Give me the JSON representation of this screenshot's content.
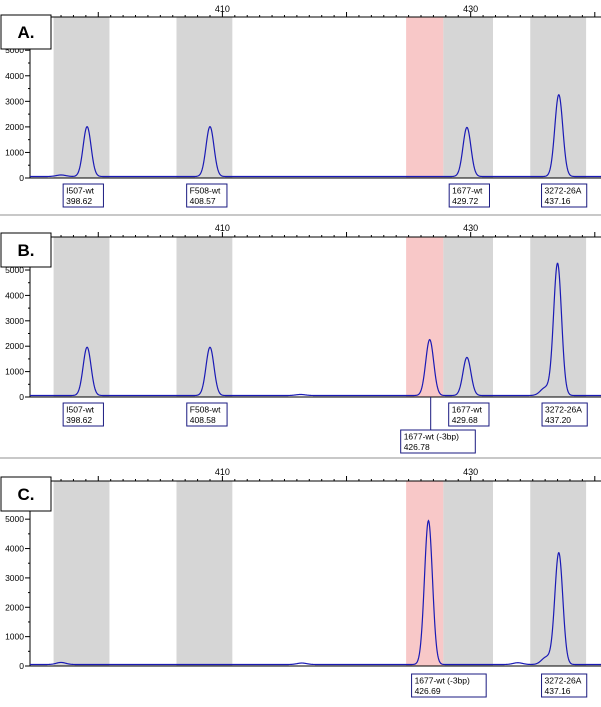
{
  "colors": {
    "bin_gray": "#d6d6d6",
    "bin_pink": "#f8c8c8",
    "trace": "#1a1ab5",
    "annotation_border": "#1a1a80",
    "separator": "#c8c8c8"
  },
  "chart_data": [
    {
      "type": "line",
      "panel_label": "A.",
      "xlim": [
        394.5,
        440.5
      ],
      "x_ticks": [
        410,
        430
      ],
      "ylim": [
        0,
        6300
      ],
      "y_ticks": [
        0,
        1000,
        2000,
        3000,
        4000,
        5000,
        6000
      ],
      "bins": [
        {
          "x0": 396.4,
          "x1": 400.9,
          "color": "gray"
        },
        {
          "x0": 406.3,
          "x1": 410.8,
          "color": "gray"
        },
        {
          "x0": 424.8,
          "x1": 427.8,
          "color": "pink"
        },
        {
          "x0": 427.8,
          "x1": 431.8,
          "color": "gray"
        },
        {
          "x0": 434.8,
          "x1": 439.3,
          "color": "gray"
        }
      ],
      "peaks": [
        {
          "x": 399.1,
          "height": 1950
        },
        {
          "x": 409.0,
          "height": 1950
        },
        {
          "x": 429.7,
          "height": 1920
        },
        {
          "x": 437.1,
          "height": 3200
        },
        {
          "x": 397.0,
          "height": 60
        }
      ],
      "annotations": [
        {
          "x": 398.62,
          "row": 0,
          "line1": "I507-wt",
          "line2": "398.62"
        },
        {
          "x": 408.57,
          "row": 0,
          "line1": "F508-wt",
          "line2": "408.57"
        },
        {
          "x": 429.72,
          "row": 0,
          "line1": "1677-wt",
          "line2": "429.72"
        },
        {
          "x": 437.16,
          "row": 0,
          "line1": "3272-26A",
          "line2": "437.16"
        }
      ]
    },
    {
      "type": "line",
      "panel_label": "B.",
      "xlim": [
        394.5,
        440.5
      ],
      "x_ticks": [
        410,
        430
      ],
      "ylim": [
        0,
        6300
      ],
      "y_ticks": [
        0,
        1000,
        2000,
        3000,
        4000,
        5000
      ],
      "bins": [
        {
          "x0": 396.4,
          "x1": 400.9,
          "color": "gray"
        },
        {
          "x0": 406.3,
          "x1": 410.8,
          "color": "gray"
        },
        {
          "x0": 424.8,
          "x1": 427.8,
          "color": "pink"
        },
        {
          "x0": 427.8,
          "x1": 431.8,
          "color": "gray"
        },
        {
          "x0": 434.8,
          "x1": 439.3,
          "color": "gray"
        }
      ],
      "peaks": [
        {
          "x": 399.1,
          "height": 1900
        },
        {
          "x": 409.0,
          "height": 1900
        },
        {
          "x": 426.7,
          "height": 2200
        },
        {
          "x": 429.7,
          "height": 1500
        },
        {
          "x": 437.0,
          "height": 5200
        },
        {
          "x": 436.0,
          "height": 300
        },
        {
          "x": 416.3,
          "height": 40
        }
      ],
      "annotations": [
        {
          "x": 398.62,
          "row": 0,
          "line1": "I507-wt",
          "line2": "398.62"
        },
        {
          "x": 408.58,
          "row": 0,
          "line1": "F508-wt",
          "line2": "408.58"
        },
        {
          "x": 429.68,
          "row": 0,
          "line1": "1677-wt",
          "line2": "429.68"
        },
        {
          "x": 437.2,
          "row": 0,
          "line1": "3272-26A",
          "line2": "437.20"
        },
        {
          "x": 426.78,
          "row": 1,
          "line1": "1677-wt (-3bp)",
          "line2": "426.78"
        }
      ]
    },
    {
      "type": "line",
      "panel_label": "C.",
      "xlim": [
        394.5,
        440.5
      ],
      "x_ticks": [
        410,
        430
      ],
      "ylim": [
        0,
        6300
      ],
      "y_ticks": [
        0,
        1000,
        2000,
        3000,
        4000,
        5000,
        6000
      ],
      "bins": [
        {
          "x0": 396.4,
          "x1": 400.9,
          "color": "gray"
        },
        {
          "x0": 406.3,
          "x1": 410.8,
          "color": "gray"
        },
        {
          "x0": 424.8,
          "x1": 427.8,
          "color": "pink"
        },
        {
          "x0": 427.8,
          "x1": 431.8,
          "color": "gray"
        },
        {
          "x0": 434.8,
          "x1": 439.3,
          "color": "gray"
        }
      ],
      "peaks": [
        {
          "x": 426.6,
          "height": 4900
        },
        {
          "x": 437.1,
          "height": 3800
        },
        {
          "x": 436.1,
          "height": 250
        },
        {
          "x": 397.0,
          "height": 70
        },
        {
          "x": 416.4,
          "height": 50
        },
        {
          "x": 433.8,
          "height": 60
        }
      ],
      "annotations": [
        {
          "x": 426.69,
          "row": 0,
          "line1": "1677-wt (-3bp)",
          "line2": "426.69"
        },
        {
          "x": 437.16,
          "row": 0,
          "line1": "3272-26A",
          "line2": "437.16"
        }
      ]
    }
  ]
}
